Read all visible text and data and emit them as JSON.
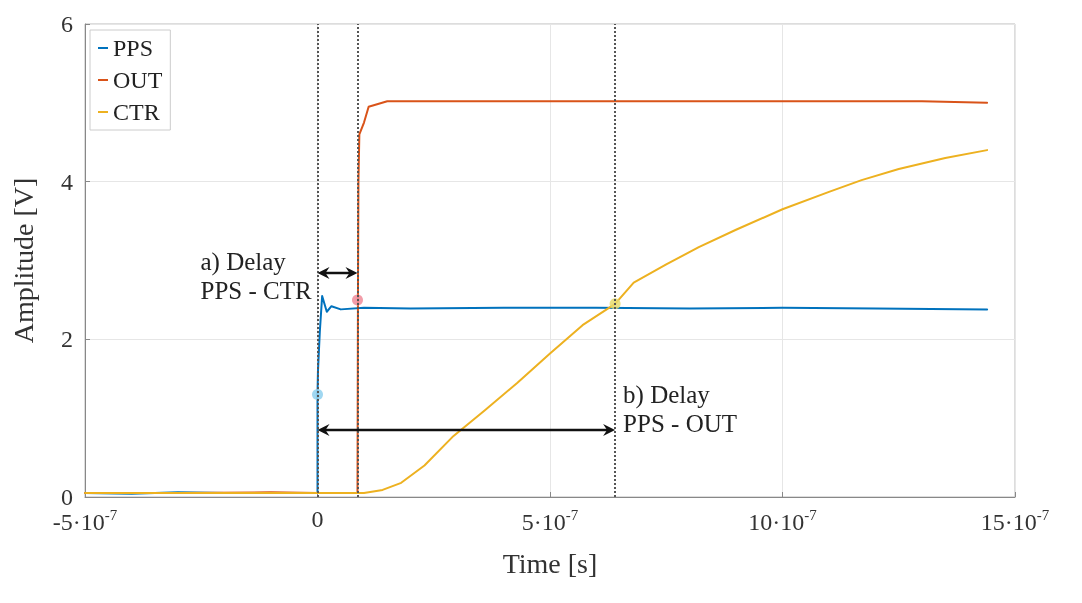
{
  "chart_data": {
    "type": "line",
    "xlabel": "Time [s]",
    "ylabel": "Amplitude [V]",
    "xlim": [
      -5e-07,
      1.5e-06
    ],
    "ylim": [
      0,
      6
    ],
    "xticks": [
      {
        "value": -5e-07,
        "label": "-5·10$^{-7}$"
      },
      0,
      {
        "value": 5e-07,
        "label": "5·10$^{-7}$"
      },
      {
        "value": 1e-06,
        "label": "10·10$^{-7}$"
      },
      {
        "value": 1.5e-06,
        "label": "15·10$^{-7}$"
      }
    ],
    "yticks": [
      0,
      2,
      4,
      6
    ],
    "grid": true,
    "legend": "top left",
    "marker": "none",
    "line_style": "solid",
    "series": [
      {
        "name": "PPS",
        "color": "#0072bd",
        "x": [
          -5e-07,
          -4e-07,
          -3e-07,
          -2e-07,
          -1e-07,
          0,
          0,
          1e-09,
          5e-09,
          1e-08,
          2e-08,
          3e-08,
          5e-08,
          1e-07,
          2e-07,
          4e-07,
          6e-07,
          8e-07,
          1e-06,
          1.2e-06,
          1.44e-06
        ],
        "values": [
          0.05,
          0.04,
          0.06,
          0.05,
          0.05,
          0.05,
          1.3,
          1.6,
          2.1,
          2.55,
          2.35,
          2.42,
          2.38,
          2.4,
          2.39,
          2.4,
          2.4,
          2.39,
          2.4,
          2.39,
          2.38
        ]
      },
      {
        "name": "OUT",
        "color": "#d95319",
        "x": [
          -5e-07,
          -3e-07,
          -1e-07,
          0,
          8.6e-08,
          8.7e-08,
          8.8e-08,
          9e-08,
          1e-07,
          1.1e-07,
          1.5e-07,
          3e-07,
          5e-07,
          7e-07,
          9e-07,
          1.1e-06,
          1.3e-06,
          1.44e-06
        ],
        "values": [
          0.05,
          0.05,
          0.06,
          0.05,
          0.05,
          2.5,
          4.0,
          4.6,
          4.75,
          4.95,
          5.02,
          5.02,
          5.02,
          5.02,
          5.02,
          5.02,
          5.02,
          5.0
        ]
      },
      {
        "name": "CTR",
        "color": "#edb120",
        "x": [
          -5e-07,
          -3e-07,
          -1e-07,
          0,
          1e-07,
          1.4e-07,
          1.8e-07,
          2.3e-07,
          2.9e-07,
          3.6e-07,
          4.3e-07,
          5e-07,
          5.7e-07,
          6.4e-07,
          6.8e-07,
          7.5e-07,
          8.2e-07,
          9e-07,
          1e-06,
          1.1e-06,
          1.17e-06,
          1.25e-06,
          1.35e-06,
          1.44e-06
        ],
        "values": [
          0.05,
          0.05,
          0.05,
          0.05,
          0.05,
          0.09,
          0.18,
          0.4,
          0.76,
          1.1,
          1.45,
          1.82,
          2.18,
          2.45,
          2.72,
          2.95,
          3.17,
          3.39,
          3.65,
          3.87,
          4.02,
          4.16,
          4.3,
          4.4
        ]
      },
      {
        "type": "scatter",
        "marker": "circle",
        "x": [
          0,
          8.6e-08,
          6.4e-07
        ],
        "values": [
          1.3,
          2.5,
          2.45
        ],
        "colors": [
          "#8fd0ee",
          "#f08c9a",
          "#e6dc6e"
        ]
      }
    ],
    "ref_lines": [
      {
        "axis": "x",
        "value": 0,
        "color": "#555555",
        "line_style": "dotted"
      },
      {
        "axis": "x",
        "value": 8.6e-08,
        "color": "#555555",
        "line_style": "dotted"
      },
      {
        "axis": "x",
        "value": 6.4e-07,
        "color": "#555555",
        "line_style": "dotted"
      }
    ],
    "annotations": [
      "a) Delay\nPPS - CTR",
      "b) Delay\nPPS - OUT"
    ]
  }
}
